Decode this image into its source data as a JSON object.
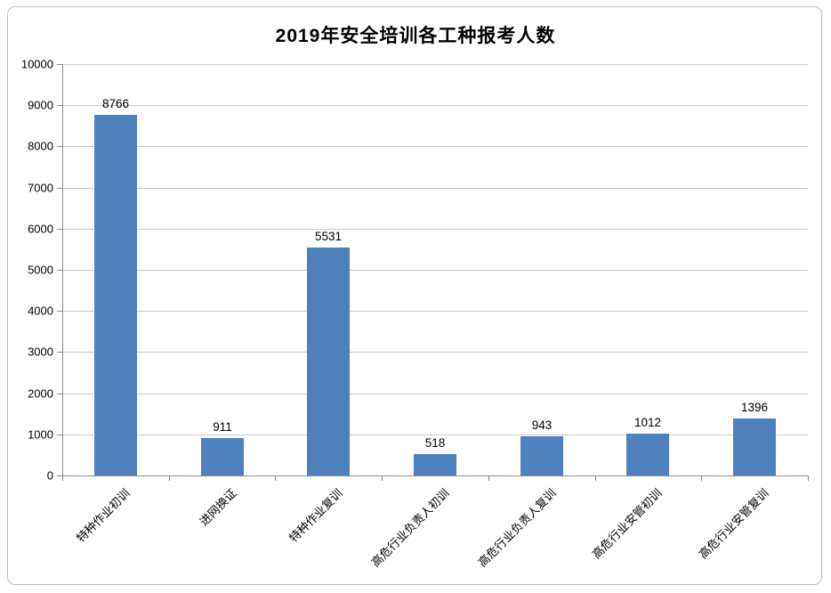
{
  "chart_data": {
    "type": "bar",
    "title": "2019年安全培训各工种报考人数",
    "categories": [
      "特种作业初训",
      "进网换证",
      "特种作业复训",
      "高危行业负责人初训",
      "高危行业负责人复训",
      "高危行业安管初训",
      "高危行业安管复训"
    ],
    "values": [
      8766,
      911,
      5531,
      518,
      943,
      1012,
      1396
    ],
    "xlabel": "",
    "ylabel": "",
    "ylim": [
      0,
      10000
    ],
    "ytick_step": 1000,
    "grid": "horizontal",
    "legend": "none",
    "bar_color": "#4F81BD",
    "gridline_color": "#C9C9C9",
    "axis_color": "#8C8C8C",
    "text_color": "#000000",
    "frame_border_color": "#BFBFBF"
  }
}
